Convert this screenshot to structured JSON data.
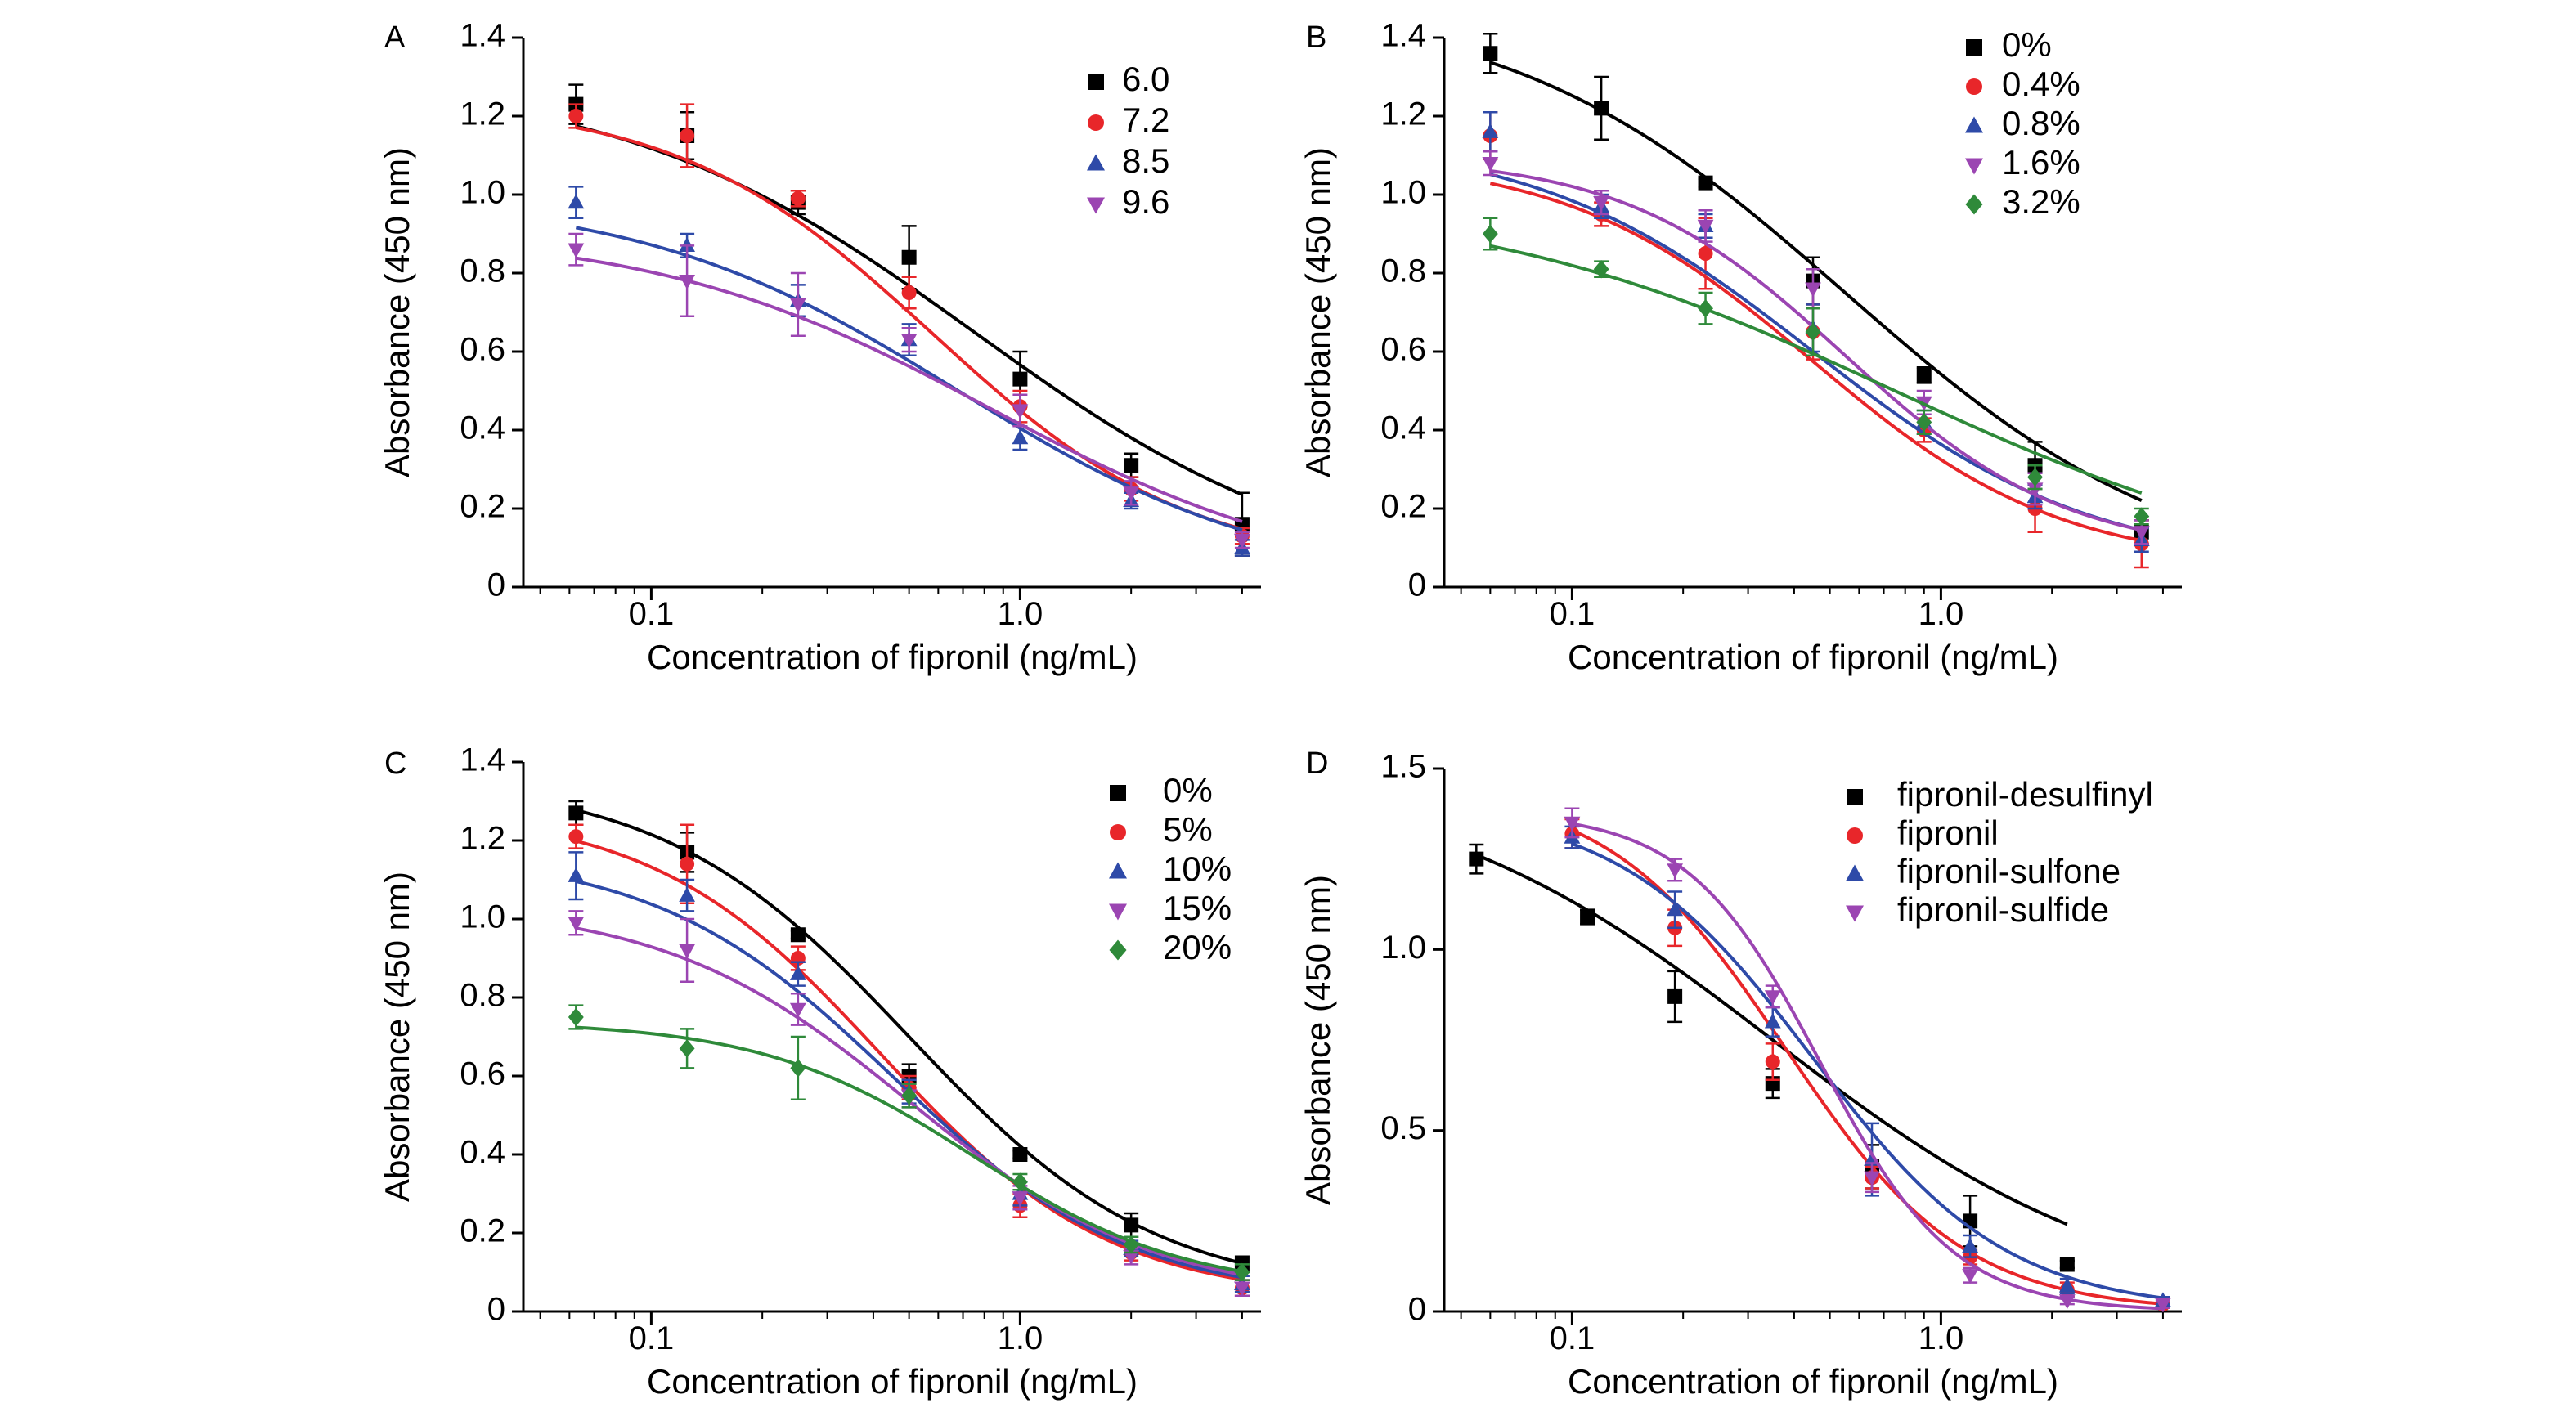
{
  "chart_data": [
    {
      "panel_label": "A",
      "type": "line",
      "xscale": "log",
      "xlabel": "Concentration of fipronil (ng/mL)",
      "ylabel": "Absorbance (450 nm)",
      "xlim": [
        0.045,
        4.5
      ],
      "ylim": [
        0,
        1.4
      ],
      "xticks": [
        {
          "value": 0.1,
          "label": "0.1"
        },
        {
          "value": 1.0,
          "label": "1.0"
        }
      ],
      "yticks": [
        {
          "value": 0,
          "label": "0"
        },
        {
          "value": 0.2,
          "label": "0.2"
        },
        {
          "value": 0.4,
          "label": "0.4"
        },
        {
          "value": 0.6,
          "label": "0.6"
        },
        {
          "value": 0.8,
          "label": "0.8"
        },
        {
          "value": 1.0,
          "label": "1.0"
        },
        {
          "value": 1.2,
          "label": "1.2"
        },
        {
          "value": 1.4,
          "label": "1.4"
        }
      ],
      "legend_position": "top-right",
      "series": [
        {
          "name": "6.0",
          "color": "#000000",
          "marker": "square",
          "x": [
            0.0625,
            0.125,
            0.25,
            0.5,
            1.0,
            2.0,
            4.0
          ],
          "y": [
            1.23,
            1.15,
            0.98,
            0.84,
            0.53,
            0.31,
            0.16
          ],
          "err": [
            0.05,
            0.06,
            0.03,
            0.08,
            0.07,
            0.03,
            0.08
          ],
          "fit": {
            "A1": 1.3,
            "A2": 0.0,
            "x0": 0.75,
            "p": 0.9
          }
        },
        {
          "name": "7.2",
          "color": "#e8262a",
          "marker": "circle",
          "x": [
            0.0625,
            0.125,
            0.25,
            0.5,
            1.0,
            2.0,
            4.0
          ],
          "y": [
            1.2,
            1.15,
            0.99,
            0.75,
            0.46,
            0.25,
            0.13
          ],
          "err": [
            0.03,
            0.08,
            0.02,
            0.04,
            0.04,
            0.03,
            0.02
          ],
          "fit": {
            "A1": 1.24,
            "A2": 0.05,
            "x0": 0.58,
            "p": 1.25
          }
        },
        {
          "name": "8.5",
          "color": "#2e4aa8",
          "marker": "triangle-up",
          "x": [
            0.0625,
            0.125,
            0.25,
            0.5,
            1.0,
            2.0,
            4.0
          ],
          "y": [
            0.98,
            0.87,
            0.73,
            0.63,
            0.38,
            0.22,
            0.1
          ],
          "err": [
            0.04,
            0.03,
            0.04,
            0.04,
            0.03,
            0.02,
            0.02
          ],
          "fit": {
            "A1": 1.0,
            "A2": 0.0,
            "x0": 0.68,
            "p": 1.0
          }
        },
        {
          "name": "9.6",
          "color": "#9b45b2",
          "marker": "triangle-down",
          "x": [
            0.0625,
            0.125,
            0.25,
            0.5,
            1.0,
            2.0,
            4.0
          ],
          "y": [
            0.86,
            0.78,
            0.72,
            0.63,
            0.45,
            0.24,
            0.12
          ],
          "err": [
            0.04,
            0.09,
            0.08,
            0.03,
            0.04,
            0.03,
            0.02
          ],
          "fit": {
            "A1": 0.91,
            "A2": 0.0,
            "x0": 0.83,
            "p": 0.95
          }
        }
      ]
    },
    {
      "panel_label": "B",
      "type": "line",
      "xscale": "log",
      "xlabel": "Concentration of fipronil (ng/mL)",
      "ylabel": "Absorbance (450 nm)",
      "xlim": [
        0.045,
        4.5
      ],
      "ylim": [
        0,
        1.4
      ],
      "xticks": [
        {
          "value": 0.1,
          "label": "0.1"
        },
        {
          "value": 1.0,
          "label": "1.0"
        }
      ],
      "yticks": [
        {
          "value": 0,
          "label": "0"
        },
        {
          "value": 0.2,
          "label": "0.2"
        },
        {
          "value": 0.4,
          "label": "0.4"
        },
        {
          "value": 0.6,
          "label": "0.6"
        },
        {
          "value": 0.8,
          "label": "0.8"
        },
        {
          "value": 1.0,
          "label": "1.0"
        },
        {
          "value": 1.2,
          "label": "1.2"
        },
        {
          "value": 1.4,
          "label": "1.4"
        }
      ],
      "legend_position": "top-right",
      "series": [
        {
          "name": "0%",
          "color": "#000000",
          "marker": "square",
          "x": [
            0.06,
            0.12,
            0.23,
            0.45,
            0.9,
            1.8,
            3.5
          ],
          "y": [
            1.36,
            1.22,
            1.03,
            0.78,
            0.54,
            0.31,
            0.14
          ],
          "err": [
            0.05,
            0.08,
            0.01,
            0.06,
            0.02,
            0.06,
            0.03
          ],
          "fit": {
            "A1": 1.5,
            "A2": 0.0,
            "x0": 0.55,
            "p": 0.95
          }
        },
        {
          "name": "0.4%",
          "color": "#e8262a",
          "marker": "circle",
          "x": [
            0.06,
            0.12,
            0.23,
            0.45,
            0.9,
            1.8,
            3.5
          ],
          "y": [
            1.15,
            0.95,
            0.85,
            0.65,
            0.4,
            0.2,
            0.11
          ],
          "err": [
            0.06,
            0.03,
            0.09,
            0.07,
            0.03,
            0.06,
            0.06
          ],
          "fit": {
            "A1": 1.1,
            "A2": 0.05,
            "x0": 0.45,
            "p": 1.3
          }
        },
        {
          "name": "0.8%",
          "color": "#2e4aa8",
          "marker": "triangle-up",
          "x": [
            0.06,
            0.12,
            0.23,
            0.45,
            0.9,
            1.8,
            3.5
          ],
          "y": [
            1.16,
            0.97,
            0.92,
            0.66,
            0.42,
            0.23,
            0.12
          ],
          "err": [
            0.05,
            0.03,
            0.03,
            0.06,
            0.03,
            0.03,
            0.03
          ],
          "fit": {
            "A1": 1.15,
            "A2": 0.05,
            "x0": 0.45,
            "p": 1.15
          }
        },
        {
          "name": "1.6%",
          "color": "#9b45b2",
          "marker": "triangle-down",
          "x": [
            0.06,
            0.12,
            0.23,
            0.45,
            0.9,
            1.8,
            3.5
          ],
          "y": [
            1.08,
            0.98,
            0.92,
            0.76,
            0.47,
            0.25,
            0.14
          ],
          "err": [
            0.03,
            0.03,
            0.04,
            0.05,
            0.03,
            0.04,
            0.03
          ],
          "fit": {
            "A1": 1.1,
            "A2": 0.08,
            "x0": 0.55,
            "p": 1.45
          }
        },
        {
          "name": "3.2%",
          "color": "#2f8a3a",
          "marker": "diamond",
          "x": [
            0.06,
            0.12,
            0.23,
            0.45,
            0.9,
            1.8,
            3.5
          ],
          "y": [
            0.9,
            0.81,
            0.71,
            0.65,
            0.42,
            0.28,
            0.18
          ],
          "err": [
            0.04,
            0.02,
            0.04,
            0.06,
            0.03,
            0.03,
            0.02
          ],
          "fit": {
            "A1": 1.0,
            "A2": 0.0,
            "x0": 0.75,
            "p": 0.75
          }
        }
      ]
    },
    {
      "panel_label": "C",
      "type": "line",
      "xscale": "log",
      "xlabel": "Concentration of fipronil (ng/mL)",
      "ylabel": "Absorbance (450 nm)",
      "xlim": [
        0.045,
        4.5
      ],
      "ylim": [
        0,
        1.4
      ],
      "xticks": [
        {
          "value": 0.1,
          "label": "0.1"
        },
        {
          "value": 1.0,
          "label": "1.0"
        }
      ],
      "yticks": [
        {
          "value": 0,
          "label": "0"
        },
        {
          "value": 0.2,
          "label": "0.2"
        },
        {
          "value": 0.4,
          "label": "0.4"
        },
        {
          "value": 0.6,
          "label": "0.6"
        },
        {
          "value": 0.8,
          "label": "0.8"
        },
        {
          "value": 1.0,
          "label": "1.0"
        },
        {
          "value": 1.2,
          "label": "1.2"
        },
        {
          "value": 1.4,
          "label": "1.4"
        }
      ],
      "legend_position": "top-right",
      "series": [
        {
          "name": "0%",
          "color": "#000000",
          "marker": "square",
          "x": [
            0.0625,
            0.125,
            0.25,
            0.5,
            1.0,
            2.0,
            4.0
          ],
          "y": [
            1.27,
            1.17,
            0.96,
            0.6,
            0.4,
            0.22,
            0.12
          ],
          "err": [
            0.03,
            0.05,
            0.01,
            0.03,
            0.01,
            0.03,
            0.02
          ],
          "fit": {
            "A1": 1.36,
            "A2": 0.04,
            "x0": 0.5,
            "p": 1.3
          }
        },
        {
          "name": "5%",
          "color": "#e8262a",
          "marker": "circle",
          "x": [
            0.0625,
            0.125,
            0.25,
            0.5,
            1.0,
            2.0,
            4.0
          ],
          "y": [
            1.21,
            1.14,
            0.9,
            0.57,
            0.27,
            0.15,
            0.06
          ],
          "err": [
            0.03,
            0.1,
            0.03,
            0.03,
            0.03,
            0.02,
            0.02
          ],
          "fit": {
            "A1": 1.28,
            "A2": 0.03,
            "x0": 0.42,
            "p": 1.4
          }
        },
        {
          "name": "10%",
          "color": "#2e4aa8",
          "marker": "triangle-up",
          "x": [
            0.0625,
            0.125,
            0.25,
            0.5,
            1.0,
            2.0,
            4.0
          ],
          "y": [
            1.11,
            1.06,
            0.86,
            0.56,
            0.3,
            0.16,
            0.07
          ],
          "err": [
            0.06,
            0.04,
            0.03,
            0.03,
            0.03,
            0.02,
            0.02
          ],
          "fit": {
            "A1": 1.17,
            "A2": 0.03,
            "x0": 0.45,
            "p": 1.35
          }
        },
        {
          "name": "15%",
          "color": "#9b45b2",
          "marker": "triangle-down",
          "x": [
            0.0625,
            0.125,
            0.25,
            0.5,
            1.0,
            2.0,
            4.0
          ],
          "y": [
            0.99,
            0.92,
            0.77,
            0.55,
            0.29,
            0.14,
            0.06
          ],
          "err": [
            0.03,
            0.08,
            0.04,
            0.03,
            0.03,
            0.02,
            0.02
          ],
          "fit": {
            "A1": 1.04,
            "A2": 0.03,
            "x0": 0.5,
            "p": 1.3
          }
        },
        {
          "name": "20%",
          "color": "#2f8a3a",
          "marker": "diamond",
          "x": [
            0.0625,
            0.125,
            0.25,
            0.5,
            1.0,
            2.0,
            4.0
          ],
          "y": [
            0.75,
            0.67,
            0.62,
            0.55,
            0.33,
            0.17,
            0.1
          ],
          "err": [
            0.03,
            0.05,
            0.08,
            0.03,
            0.02,
            0.02,
            0.02
          ],
          "fit": {
            "A1": 0.74,
            "A2": 0.05,
            "x0": 0.75,
            "p": 1.5
          }
        }
      ]
    },
    {
      "panel_label": "D",
      "type": "line",
      "xscale": "log",
      "xlabel": "Concentration of fipronil (ng/mL)",
      "ylabel": "Absorbance (450 nm)",
      "xlim": [
        0.045,
        4.5
      ],
      "ylim": [
        0,
        1.5
      ],
      "xticks": [
        {
          "value": 0.1,
          "label": "0.1"
        },
        {
          "value": 1.0,
          "label": "1.0"
        }
      ],
      "yticks": [
        {
          "value": 0,
          "label": "0"
        },
        {
          "value": 0.5,
          "label": "0.5"
        },
        {
          "value": 1.0,
          "label": "1.0"
        },
        {
          "value": 1.5,
          "label": "1.5"
        }
      ],
      "legend_position": "top-right",
      "series": [
        {
          "name": "fipronil-desulfinyl",
          "color": "#000000",
          "marker": "square",
          "x": [
            0.055,
            0.11,
            0.19,
            0.35,
            0.65,
            1.2,
            2.2
          ],
          "y": [
            1.25,
            1.09,
            0.87,
            0.63,
            0.4,
            0.25,
            0.13
          ],
          "err": [
            0.04,
            0.02,
            0.07,
            0.04,
            0.06,
            0.07,
            0.01
          ],
          "fit": {
            "A1": 1.5,
            "A2": 0.0,
            "x0": 0.35,
            "p": 0.9
          }
        },
        {
          "name": "fipronil",
          "color": "#e8262a",
          "marker": "circle",
          "x": [
            0.1,
            0.19,
            0.35,
            0.65,
            1.2,
            2.2,
            4.0
          ],
          "y": [
            1.32,
            1.06,
            0.69,
            0.37,
            0.15,
            0.06,
            0.02
          ],
          "err": [
            0.04,
            0.05,
            0.05,
            0.03,
            0.02,
            0.02,
            0.01
          ],
          "fit": {
            "A1": 1.45,
            "A2": 0.0,
            "x0": 0.38,
            "p": 1.8
          }
        },
        {
          "name": "fipronil-sulfone",
          "color": "#2e4aa8",
          "marker": "triangle-up",
          "x": [
            0.1,
            0.19,
            0.35,
            0.65,
            1.2,
            2.2,
            4.0
          ],
          "y": [
            1.31,
            1.11,
            0.8,
            0.42,
            0.18,
            0.07,
            0.03
          ],
          "err": [
            0.03,
            0.05,
            0.04,
            0.1,
            0.03,
            0.02,
            0.01
          ],
          "fit": {
            "A1": 1.4,
            "A2": 0.0,
            "x0": 0.45,
            "p": 1.65
          }
        },
        {
          "name": "fipronil-sulfide",
          "color": "#9b45b2",
          "marker": "triangle-down",
          "x": [
            0.1,
            0.19,
            0.35,
            0.65,
            1.2,
            2.2,
            4.0
          ],
          "y": [
            1.35,
            1.22,
            0.87,
            0.37,
            0.1,
            0.03,
            0.02
          ],
          "err": [
            0.04,
            0.03,
            0.03,
            0.04,
            0.02,
            0.01,
            0.01
          ],
          "fit": {
            "A1": 1.38,
            "A2": 0.0,
            "x0": 0.47,
            "p": 2.4
          }
        }
      ]
    }
  ]
}
